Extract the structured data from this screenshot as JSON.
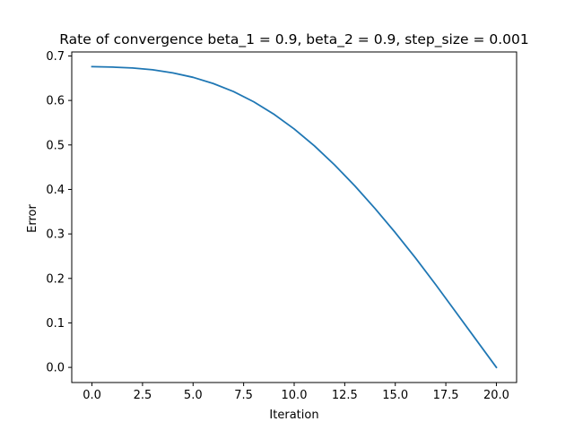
{
  "chart_data": {
    "type": "line",
    "title": "Rate of convergence beta_1 = 0.9, beta_2 = 0.9, step_size = 0.001",
    "xlabel": "Iteration",
    "ylabel": "Error",
    "xlim": [
      -1.0,
      21.0
    ],
    "ylim": [
      -0.034,
      0.709
    ],
    "xticks": [
      0.0,
      2.5,
      5.0,
      7.5,
      10.0,
      12.5,
      15.0,
      17.5,
      20.0
    ],
    "xtick_labels": [
      "0.0",
      "2.5",
      "5.0",
      "7.5",
      "10.0",
      "12.5",
      "15.0",
      "17.5",
      "20.0"
    ],
    "yticks": [
      0.0,
      0.1,
      0.2,
      0.3,
      0.4,
      0.5,
      0.6,
      0.7
    ],
    "ytick_labels": [
      "0.0",
      "0.1",
      "0.2",
      "0.3",
      "0.4",
      "0.5",
      "0.6",
      "0.7"
    ],
    "grid": false,
    "legend": "none",
    "line_color": "#1f77b4",
    "series": [
      {
        "x": [
          0,
          1,
          2,
          3,
          4,
          5,
          6,
          7,
          8,
          9,
          10,
          11,
          12,
          13,
          14,
          15,
          16,
          17,
          18,
          19,
          20
        ],
        "values": [
          0.676,
          0.675,
          0.673,
          0.669,
          0.662,
          0.652,
          0.638,
          0.62,
          0.597,
          0.569,
          0.536,
          0.498,
          0.455,
          0.408,
          0.357,
          0.303,
          0.246,
          0.186,
          0.124,
          0.062,
          0.0
        ]
      }
    ]
  }
}
